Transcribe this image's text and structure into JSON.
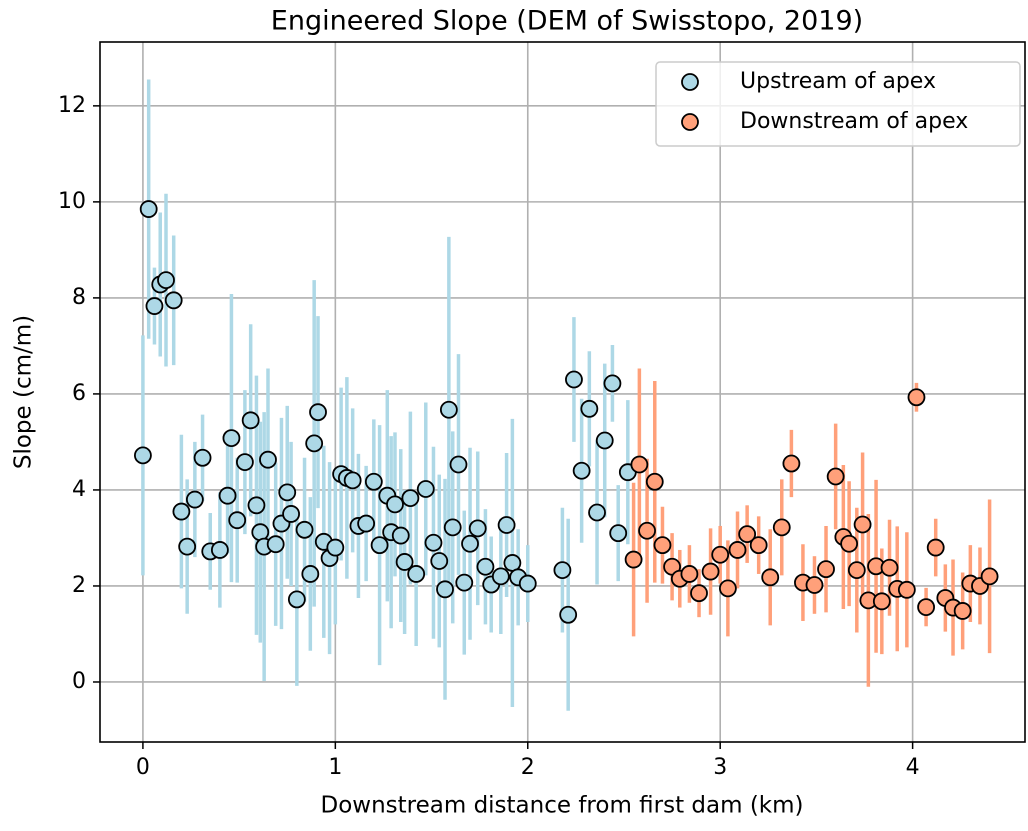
{
  "chart_data": {
    "type": "scatter",
    "title": "Engineered Slope (DEM of Swisstopo, 2019)",
    "xlabel": "Downstream distance from first dam (km)",
    "ylabel": "Slope (cm/m)",
    "xlim": [
      -0.223,
      4.584
    ],
    "ylim": [
      -1.25,
      13.33
    ],
    "xticks": [
      0,
      1,
      2,
      3,
      4
    ],
    "yticks": [
      0,
      2,
      4,
      6,
      8,
      10,
      12
    ],
    "grid": true,
    "legend": "upper right",
    "series": [
      {
        "name": "Upstream of apex",
        "color": "#add8e6",
        "x": [
          0.0,
          0.03,
          0.06,
          0.09,
          0.12,
          0.16,
          0.2,
          0.23,
          0.27,
          0.31,
          0.35,
          0.4,
          0.44,
          0.46,
          0.49,
          0.53,
          0.56,
          0.59,
          0.61,
          0.63,
          0.65,
          0.69,
          0.72,
          0.75,
          0.77,
          0.8,
          0.84,
          0.87,
          0.89,
          0.91,
          0.94,
          0.97,
          1.0,
          1.03,
          1.06,
          1.09,
          1.12,
          1.16,
          1.2,
          1.23,
          1.27,
          1.29,
          1.31,
          1.34,
          1.36,
          1.39,
          1.42,
          1.47,
          1.51,
          1.54,
          1.57,
          1.59,
          1.61,
          1.64,
          1.67,
          1.7,
          1.74,
          1.78,
          1.81,
          1.86,
          1.89,
          1.92,
          1.95,
          2.0,
          2.18,
          2.21,
          2.24,
          2.28,
          2.32,
          2.36,
          2.4,
          2.44,
          2.47,
          2.52
        ],
        "values": [
          4.72,
          9.85,
          7.83,
          8.28,
          8.37,
          7.95,
          3.55,
          2.82,
          3.8,
          4.67,
          2.72,
          2.75,
          3.88,
          5.08,
          3.37,
          4.58,
          5.45,
          3.68,
          3.12,
          2.82,
          4.63,
          2.87,
          3.3,
          3.95,
          3.5,
          1.72,
          3.17,
          2.25,
          4.97,
          5.62,
          2.92,
          2.58,
          2.8,
          4.33,
          4.25,
          4.2,
          3.25,
          3.3,
          4.17,
          2.85,
          3.88,
          3.12,
          3.7,
          3.05,
          2.5,
          3.83,
          2.25,
          4.02,
          2.9,
          2.52,
          1.93,
          5.67,
          3.22,
          4.53,
          2.07,
          2.88,
          3.2,
          2.4,
          2.03,
          2.2,
          3.27,
          2.48,
          2.18,
          2.05,
          2.33,
          1.4,
          6.3,
          4.4,
          5.69,
          3.53,
          5.03,
          6.22,
          3.1,
          4.37
        ],
        "errors": [
          2.5,
          2.7,
          0.8,
          1.5,
          1.8,
          1.35,
          1.6,
          1.4,
          1.2,
          0.9,
          0.8,
          1.2,
          1.2,
          3.0,
          1.3,
          1.5,
          2.0,
          2.7,
          2.3,
          2.8,
          1.9,
          1.7,
          2.2,
          1.8,
          1.5,
          1.8,
          1.5,
          1.6,
          3.4,
          2.0,
          2.0,
          2.0,
          1.6,
          1.8,
          2.1,
          1.5,
          1.5,
          1.2,
          1.3,
          2.5,
          2.2,
          2.0,
          1.5,
          1.8,
          1.5,
          1.8,
          1.5,
          1.8,
          2.0,
          1.8,
          2.3,
          3.6,
          2.0,
          2.3,
          1.5,
          2.0,
          1.6,
          1.2,
          1.0,
          1.2,
          1.5,
          3.0,
          1.0,
          0.8,
          1.3,
          2.0,
          1.3,
          1.5,
          1.2,
          1.5,
          1.6,
          0.8,
          1.0,
          1.5
        ]
      },
      {
        "name": "Downstream of apex",
        "color": "#ffa07a",
        "x": [
          2.55,
          2.58,
          2.62,
          2.66,
          2.7,
          2.75,
          2.79,
          2.84,
          2.89,
          2.95,
          3.0,
          3.04,
          3.09,
          3.14,
          3.2,
          3.26,
          3.32,
          3.37,
          3.43,
          3.49,
          3.55,
          3.6,
          3.64,
          3.67,
          3.71,
          3.74,
          3.77,
          3.81,
          3.84,
          3.88,
          3.92,
          3.97,
          4.02,
          4.07,
          4.12,
          4.17,
          4.21,
          4.26,
          4.3,
          4.35,
          4.4
        ],
        "values": [
          2.55,
          4.53,
          3.15,
          4.17,
          2.85,
          2.4,
          2.15,
          2.25,
          1.85,
          2.3,
          2.65,
          1.95,
          2.75,
          3.08,
          2.85,
          2.18,
          3.22,
          4.55,
          2.07,
          2.02,
          2.35,
          4.28,
          3.02,
          2.88,
          2.33,
          3.28,
          1.7,
          2.41,
          1.68,
          2.38,
          1.94,
          1.92,
          5.93,
          1.56,
          2.8,
          1.75,
          1.55,
          1.48,
          2.05,
          2.0,
          2.2
        ],
        "errors": [
          1.6,
          2.0,
          1.5,
          2.1,
          0.8,
          0.7,
          0.6,
          0.6,
          0.5,
          0.9,
          0.6,
          1.0,
          0.8,
          0.6,
          0.6,
          1.0,
          1.0,
          0.7,
          0.8,
          0.6,
          0.9,
          1.1,
          1.5,
          1.3,
          1.3,
          1.5,
          1.8,
          1.8,
          1.1,
          1.0,
          1.3,
          1.2,
          0.3,
          0.4,
          0.6,
          0.7,
          1.0,
          0.8,
          0.8,
          0.8,
          1.6
        ]
      }
    ]
  }
}
